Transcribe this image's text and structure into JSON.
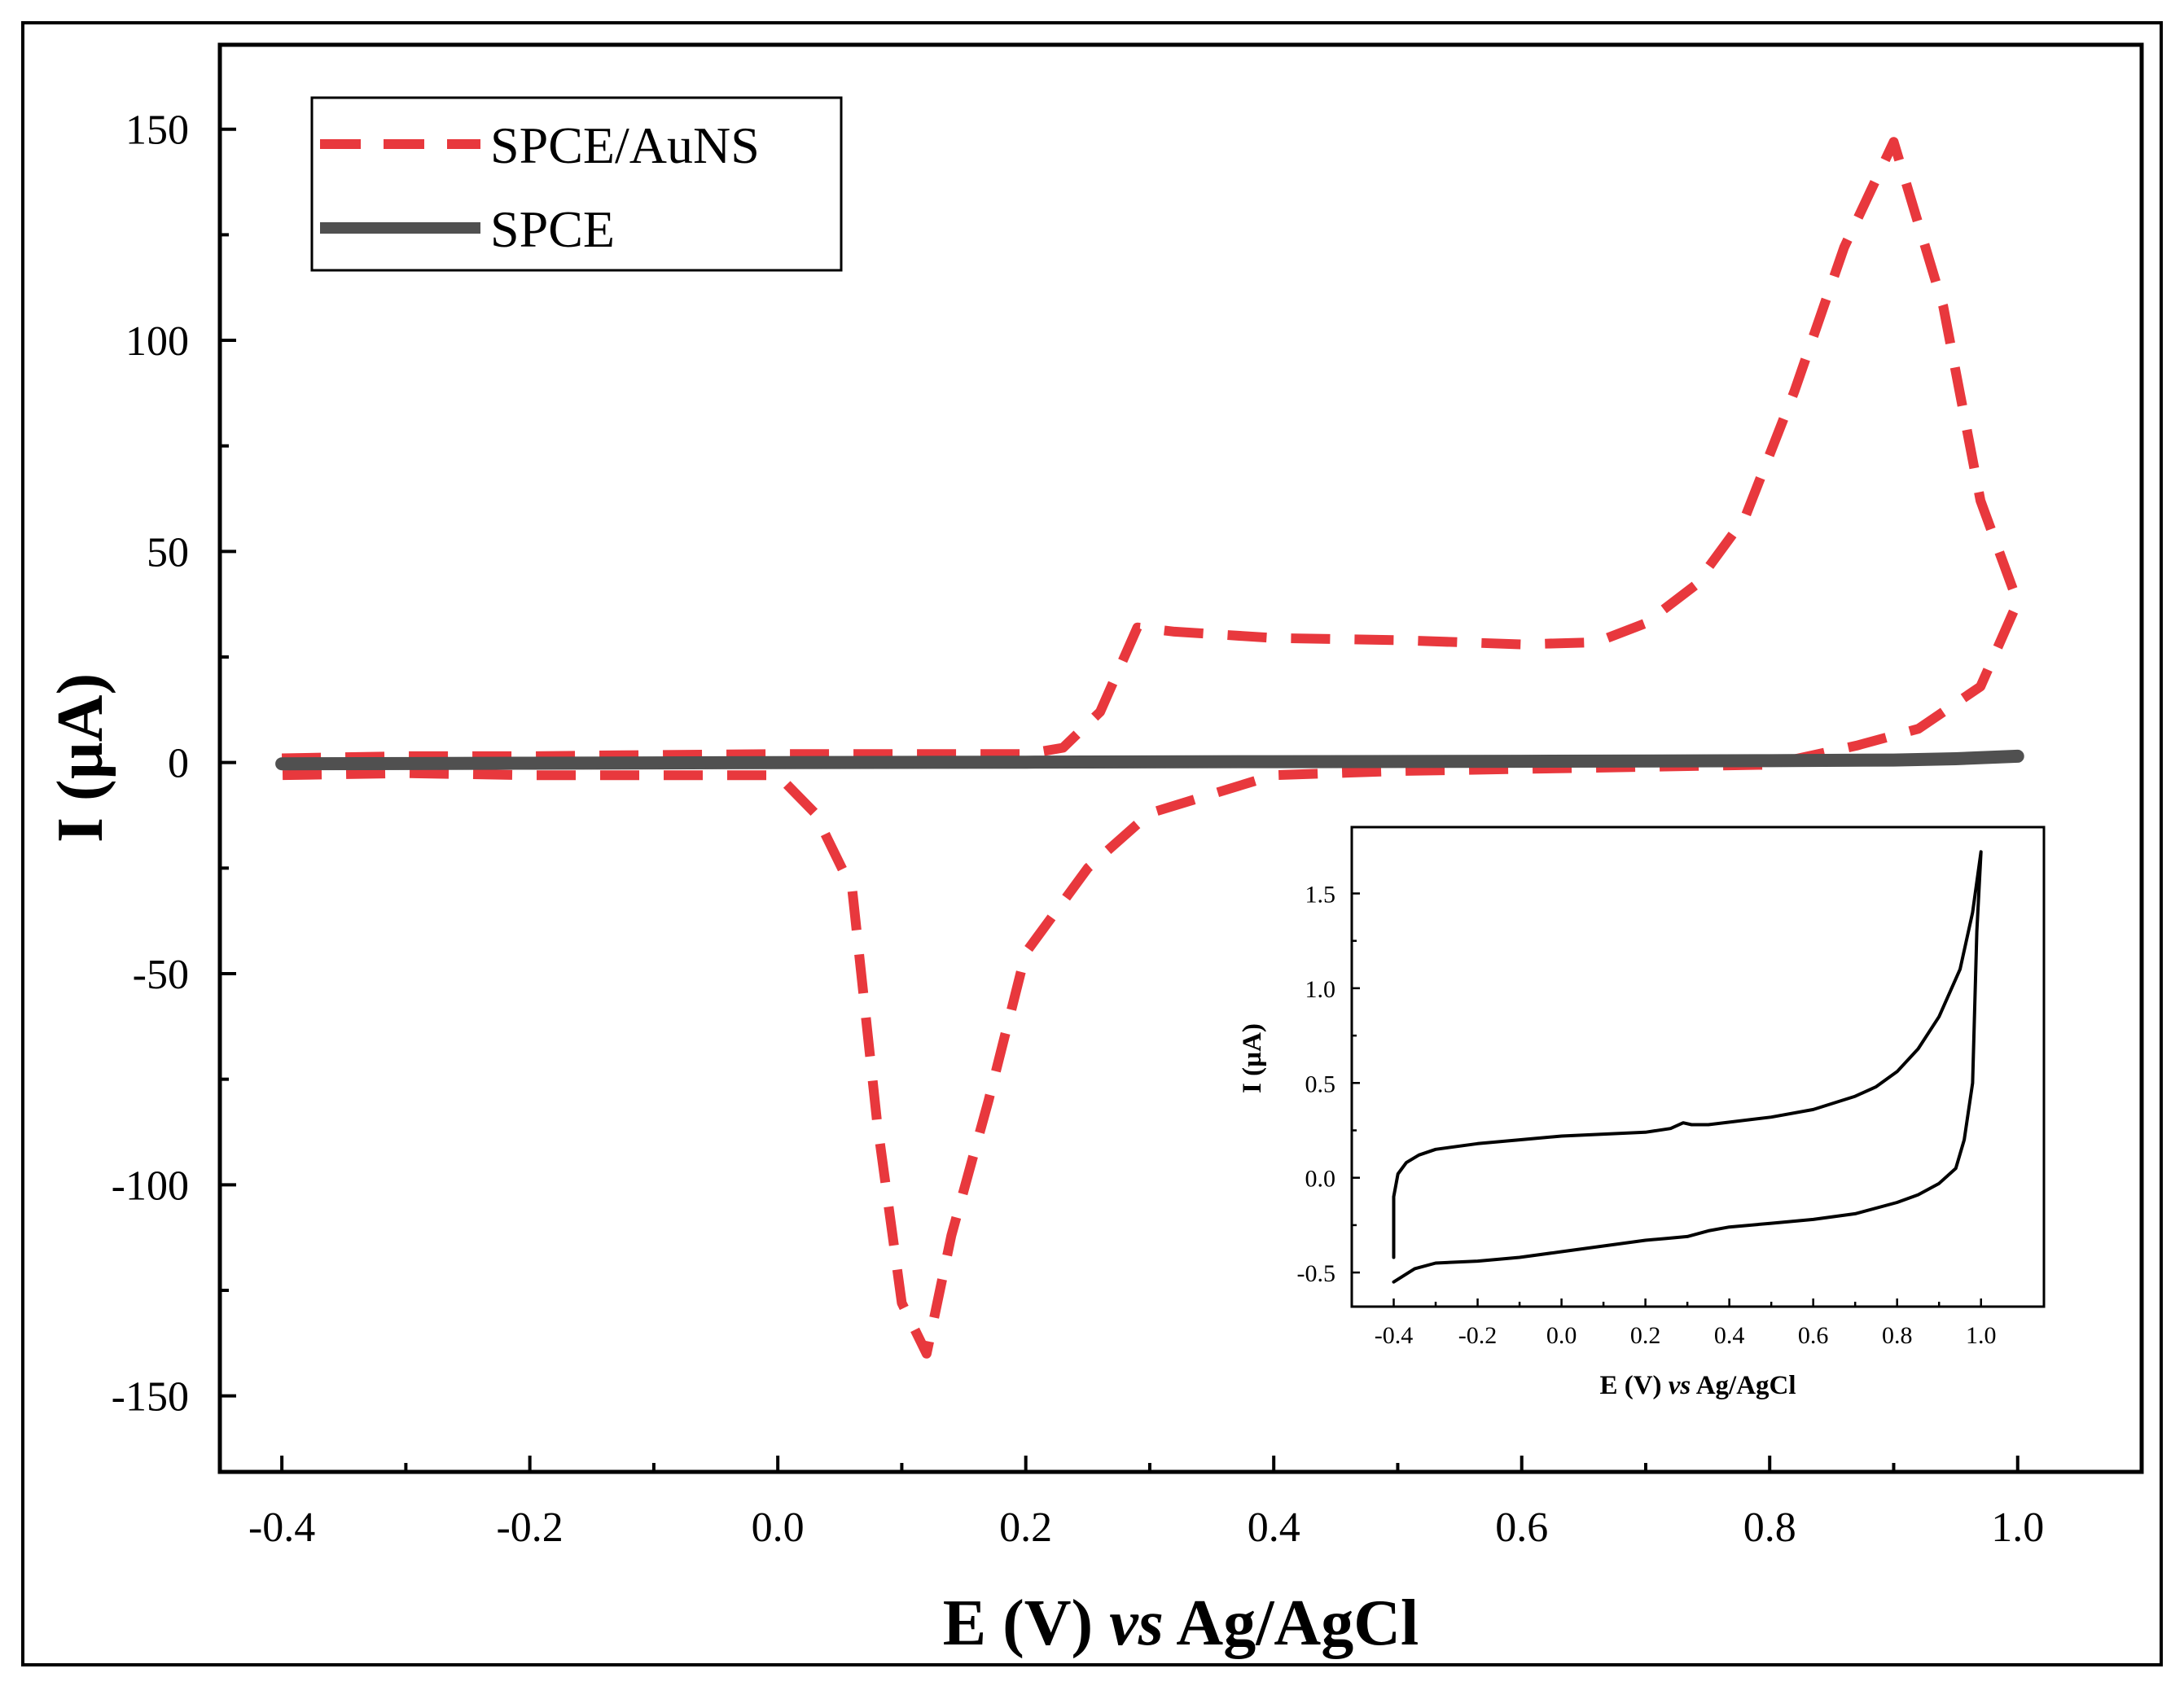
{
  "chart_data": [
    {
      "id": "main",
      "type": "line",
      "title": "",
      "xlabel": {
        "pre": "E (V) ",
        "italic": "vs",
        "post": " Ag/AgCl"
      },
      "ylabel": "I (µA)",
      "xlim": [
        -0.45,
        1.1
      ],
      "ylim": [
        -168,
        170
      ],
      "xticks": [
        -0.4,
        -0.2,
        0.0,
        0.2,
        0.4,
        0.6,
        0.8,
        1.0
      ],
      "xticklabels": [
        "-0.4",
        "-0.2",
        "0.0",
        "0.2",
        "0.4",
        "0.6",
        "0.8",
        "1.0"
      ],
      "yticks": [
        150,
        100,
        50,
        0,
        -50,
        -100,
        -150
      ],
      "yticklabels": [
        "150",
        "100",
        "50",
        "0",
        "-50",
        "-100",
        "-150"
      ],
      "grid": false,
      "legend_position": "top-left",
      "series": [
        {
          "name": "SPCE/AuNS",
          "color": "#e8383d",
          "style": "dashed",
          "x": [
            -0.4,
            -0.3,
            -0.2,
            -0.1,
            0.0,
            0.1,
            0.2,
            0.23,
            0.26,
            0.29,
            0.32,
            0.4,
            0.5,
            0.6,
            0.66,
            0.7,
            0.74,
            0.78,
            0.82,
            0.86,
            0.9,
            0.94,
            0.97,
            1.0,
            0.97,
            0.92,
            0.87,
            0.8,
            0.7,
            0.6,
            0.5,
            0.4,
            0.3,
            0.25,
            0.2,
            0.17,
            0.14,
            0.12,
            0.1,
            0.08,
            0.06,
            0.03,
            0.0,
            -0.1,
            -0.2,
            -0.3,
            -0.4
          ],
          "y": [
            1.0,
            1.5,
            1.5,
            1.8,
            2.0,
            2.0,
            2.0,
            3.5,
            12.0,
            32.0,
            31.0,
            29.5,
            29.0,
            28.0,
            28.5,
            33.0,
            42.0,
            58.0,
            88.0,
            122.0,
            147.0,
            108.0,
            62.0,
            38.0,
            18.0,
            8.0,
            4.0,
            -0.5,
            -1.0,
            -1.5,
            -2.0,
            -3.0,
            -12.0,
            -25.0,
            -45.0,
            -80.0,
            -112.0,
            -140.0,
            -128.0,
            -85.0,
            -30.0,
            -12.0,
            -3.0,
            -3.0,
            -3.0,
            -2.5,
            -3.0
          ]
        },
        {
          "name": "SPCE",
          "color": "#505050",
          "style": "solid",
          "x": [
            -0.4,
            -0.2,
            0.0,
            0.2,
            0.4,
            0.6,
            0.8,
            0.9,
            0.95,
            1.0
          ],
          "y": [
            -0.3,
            -0.15,
            0.0,
            0.1,
            0.2,
            0.3,
            0.45,
            0.6,
            0.9,
            1.5
          ]
        }
      ]
    },
    {
      "id": "inset",
      "type": "line",
      "title": "",
      "xlabel": {
        "pre": "E (V) ",
        "italic": "vs",
        "post": " Ag/AgCl"
      },
      "ylabel": "I (µA)",
      "xlim": [
        -0.5,
        1.15
      ],
      "ylim": [
        -0.68,
        1.85
      ],
      "xticks": [
        -0.4,
        -0.2,
        0.0,
        0.2,
        0.4,
        0.6,
        0.8,
        1.0
      ],
      "xticklabels": [
        "-0.4",
        "-0.2",
        "0.0",
        "0.2",
        "0.4",
        "0.6",
        "0.8",
        "1.0"
      ],
      "yticks": [
        1.5,
        1.0,
        0.5,
        0.0,
        -0.5
      ],
      "yticklabels": [
        "1.5",
        "1.0",
        "0.5",
        "0.0",
        "-0.5"
      ],
      "grid": false,
      "series": [
        {
          "name": "SPCE",
          "color": "#000000",
          "style": "solid",
          "x": [
            -0.4,
            -0.4,
            -0.39,
            -0.37,
            -0.34,
            -0.3,
            -0.2,
            -0.1,
            0.0,
            0.1,
            0.2,
            0.26,
            0.29,
            0.31,
            0.35,
            0.5,
            0.6,
            0.7,
            0.75,
            0.8,
            0.85,
            0.9,
            0.95,
            0.98,
            1.0,
            0.99,
            0.98,
            0.96,
            0.94,
            0.9,
            0.85,
            0.8,
            0.7,
            0.6,
            0.5,
            0.4,
            0.35,
            0.3,
            0.25,
            0.2,
            0.1,
            0.0,
            -0.1,
            -0.2,
            -0.3,
            -0.35,
            -0.4
          ],
          "y": [
            -0.42,
            -0.1,
            0.02,
            0.08,
            0.12,
            0.15,
            0.18,
            0.2,
            0.22,
            0.23,
            0.24,
            0.26,
            0.29,
            0.28,
            0.28,
            0.32,
            0.36,
            0.43,
            0.48,
            0.56,
            0.68,
            0.85,
            1.1,
            1.4,
            1.72,
            1.3,
            0.5,
            0.2,
            0.05,
            -0.03,
            -0.09,
            -0.13,
            -0.19,
            -0.22,
            -0.24,
            -0.26,
            -0.28,
            -0.31,
            -0.32,
            -0.33,
            -0.36,
            -0.39,
            -0.42,
            -0.44,
            -0.45,
            -0.48,
            -0.55
          ]
        }
      ]
    }
  ]
}
